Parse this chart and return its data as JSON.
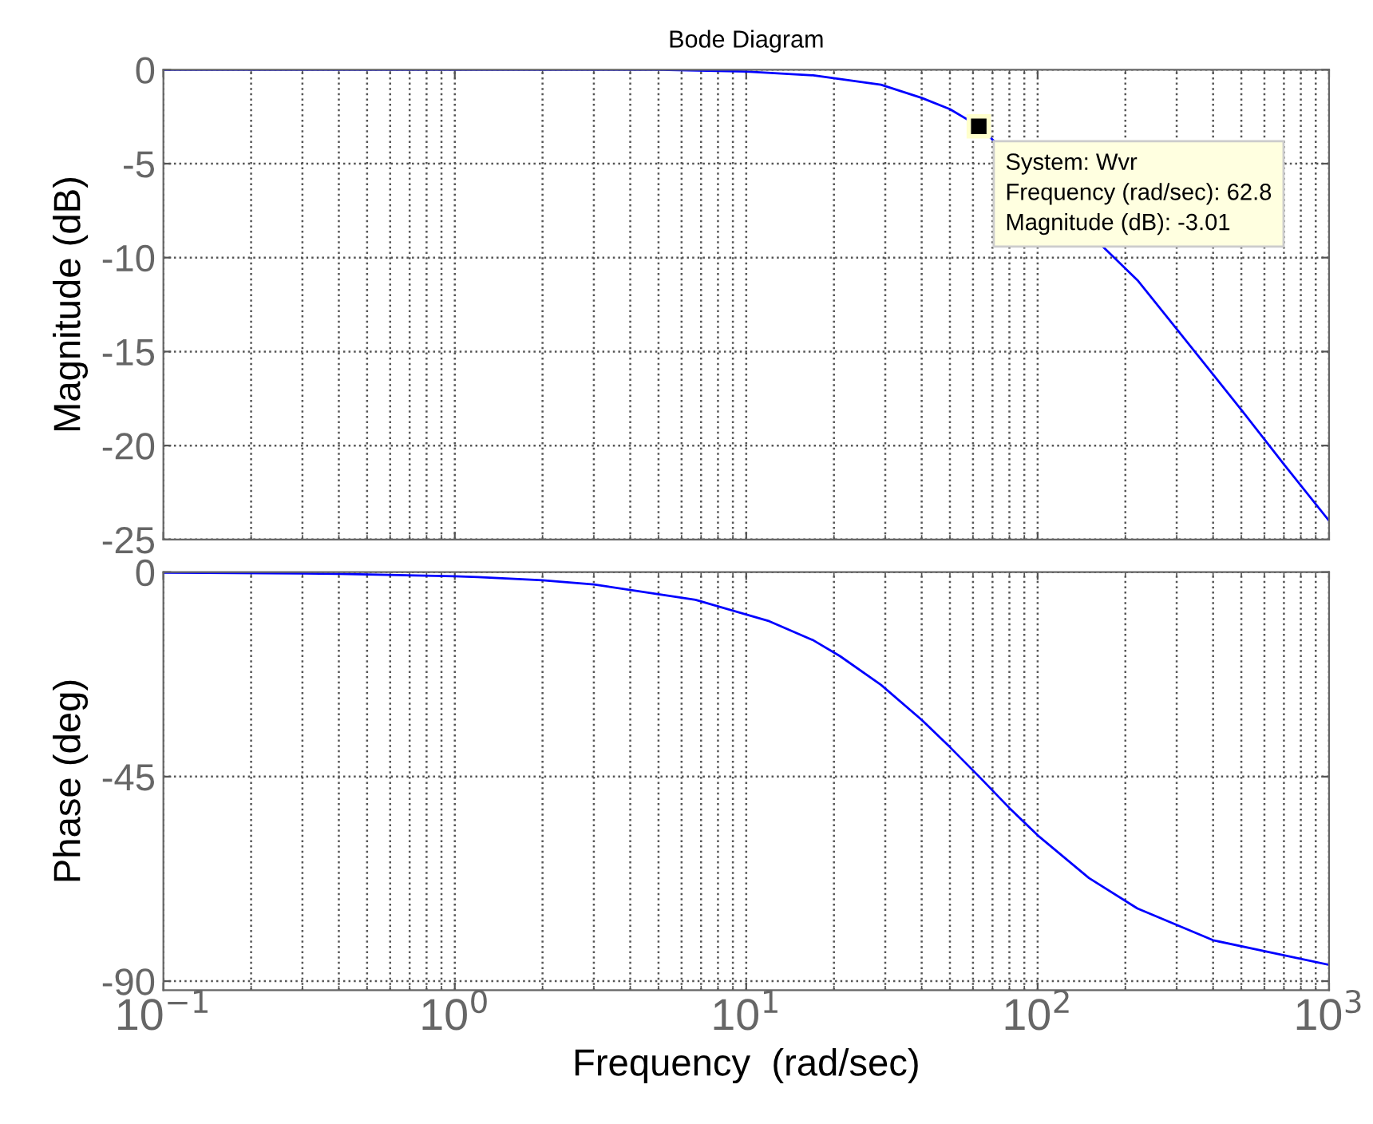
{
  "chart_data": [
    {
      "type": "line",
      "title": "Bode Diagram",
      "ylabel": "Magnitude (dB)",
      "log": "x",
      "grid": true,
      "tick_labels": "y",
      "xlim": [
        0.1,
        1000
      ],
      "ylim": [
        -25,
        0
      ],
      "yticks": [
        0,
        -5,
        -10,
        -15,
        -20,
        -25
      ],
      "x": [
        0.1,
        1,
        5,
        10,
        17,
        29,
        40,
        50,
        62.8,
        220,
        300,
        500,
        700,
        1000
      ],
      "series": [
        {
          "color": "#0000ff",
          "values": [
            0,
            0,
            0,
            -0.1,
            -0.3,
            -0.8,
            -1.5,
            -2.1,
            -3.01,
            -11.2,
            -13.8,
            -18.1,
            -21,
            -24
          ]
        }
      ],
      "annotations": [
        {
          "text": "System: Wvr\nFrequency (rad/sec): 62.8\nMagnitude (dB): -3.01",
          "x": 62.8,
          "y": -3.01
        }
      ]
    },
    {
      "type": "line",
      "ylabel": "Phase (deg)",
      "xlabel": "Frequency  (rad/sec)",
      "log": "x",
      "grid": true,
      "xlim": [
        0.1,
        1000
      ],
      "ylim": [
        -92,
        0
      ],
      "yticks": [
        0,
        -45,
        -90
      ],
      "xticks": [
        {
          "value": 0.1,
          "label": "10$^{−1}$"
        },
        {
          "value": 1,
          "label": "10$^{0}$"
        },
        {
          "value": 10,
          "label": "10$^{1}$"
        },
        {
          "value": 100,
          "label": "10$^{2}$"
        },
        {
          "value": 1000,
          "label": "10$^{3}$"
        }
      ],
      "x": [
        0.1,
        0.3,
        0.4,
        1,
        1.2,
        2,
        3,
        6.7,
        12,
        17,
        21,
        29,
        40,
        50,
        63,
        80,
        100,
        150,
        220,
        400,
        1000
      ],
      "series": [
        {
          "color": "#0000ff",
          "values": [
            -0.1,
            -0.3,
            -0.4,
            -0.9,
            -1.1,
            -1.8,
            -2.7,
            -6.1,
            -10.8,
            -15,
            -18.5,
            -24.8,
            -32.5,
            -38.5,
            -45,
            -51.9,
            -57.9,
            -67.3,
            -74,
            -81,
            -86.4
          ]
        }
      ]
    }
  ]
}
